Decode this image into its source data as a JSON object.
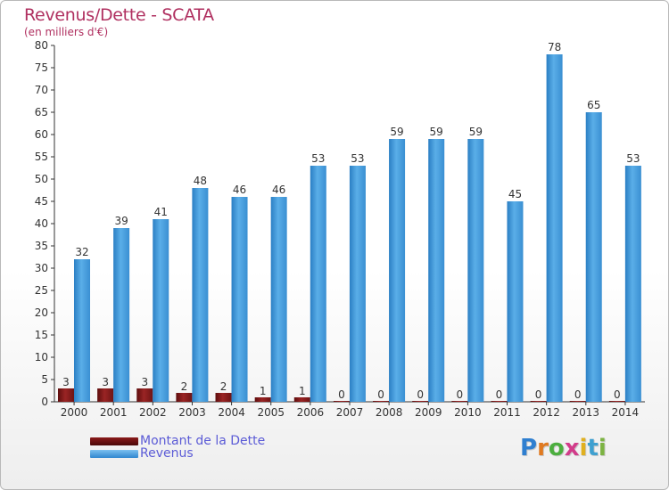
{
  "chart_data": {
    "type": "bar",
    "title": "Revenus/Dette - SCATA",
    "subtitle": "(en milliers d'€)",
    "categories": [
      "2000",
      "2001",
      "2002",
      "2003",
      "2004",
      "2005",
      "2006",
      "2007",
      "2008",
      "2009",
      "2010",
      "2011",
      "2012",
      "2013",
      "2014"
    ],
    "series": [
      {
        "name": "Montant de la Dette",
        "color": "#8b1a1a",
        "values": [
          3,
          3,
          3,
          2,
          2,
          1,
          1,
          0,
          0,
          0,
          0,
          0,
          0,
          0,
          0
        ]
      },
      {
        "name": "Revenus",
        "color": "#4fa3e0",
        "values": [
          32,
          39,
          41,
          48,
          46,
          46,
          53,
          53,
          59,
          59,
          59,
          45,
          78,
          65,
          53
        ]
      }
    ],
    "ylim": [
      0,
      80
    ],
    "yticks": [
      0,
      5,
      10,
      15,
      20,
      25,
      30,
      35,
      40,
      45,
      50,
      55,
      60,
      65,
      70,
      75,
      80
    ],
    "grid": false,
    "legend": "bottom-left"
  },
  "legend": {
    "debt_label": "Montant de la Dette",
    "revenue_label": "Revenus"
  },
  "logo": {
    "letters": [
      "P",
      "r",
      "o",
      "x",
      "i",
      "t",
      "i"
    ],
    "colors": [
      "#2f7fd0",
      "#e07a20",
      "#4cae3f",
      "#d23c8a",
      "#e0b020",
      "#3fa0d0",
      "#7cb342"
    ]
  }
}
